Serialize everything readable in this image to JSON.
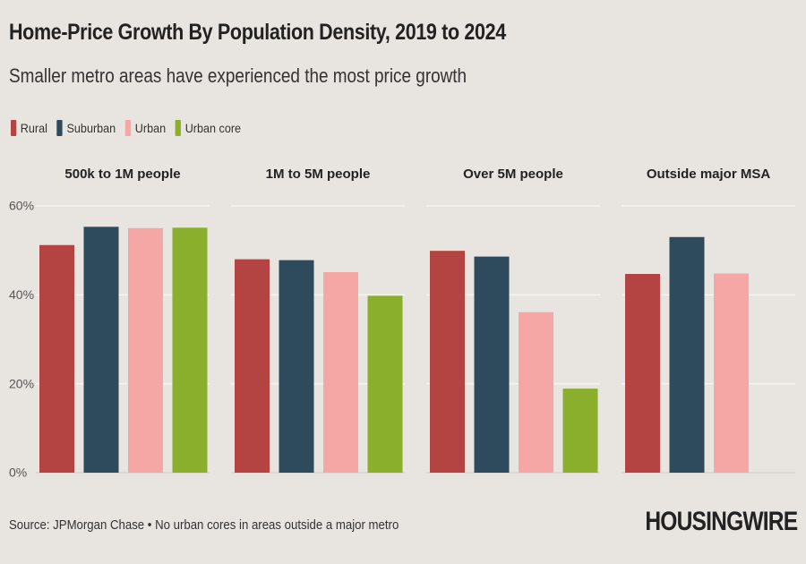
{
  "header": {
    "title": "Home-Price Growth By Population Density, 2019 to 2024",
    "subtitle": "Smaller metro areas have experienced the most price growth"
  },
  "legend": [
    {
      "label": "Rural",
      "color": "#b44441"
    },
    {
      "label": "Suburban",
      "color": "#2d4b5c"
    },
    {
      "label": "Urban",
      "color": "#f4a7a4"
    },
    {
      "label": "Urban core",
      "color": "#8aaf2d"
    }
  ],
  "chart_data": {
    "type": "bar",
    "title": "Home-Price Growth By Population Density, 2019 to 2024",
    "ylim": [
      0,
      60
    ],
    "yticks": [
      0,
      20,
      40,
      60
    ],
    "ytick_labels": [
      "0%",
      "20%",
      "40%",
      "60%"
    ],
    "gridlines": true,
    "series_names": [
      "Rural",
      "Suburban",
      "Urban",
      "Urban core"
    ],
    "panels": [
      {
        "title": "500k to 1M people",
        "values": [
          51.2,
          55.3,
          55.0,
          55.1
        ]
      },
      {
        "title": "1M to 5M people",
        "values": [
          48.0,
          47.8,
          45.1,
          39.8
        ]
      },
      {
        "title": "Over 5M people",
        "values": [
          49.9,
          48.6,
          36.1,
          18.9
        ]
      },
      {
        "title": "Outside major MSA",
        "values": [
          44.7,
          53.0,
          44.8,
          null
        ]
      }
    ]
  },
  "footer": {
    "source": "Source: JPMorgan Chase • No urban cores in areas outside a major metro",
    "brand": "HOUSINGWIRE"
  }
}
